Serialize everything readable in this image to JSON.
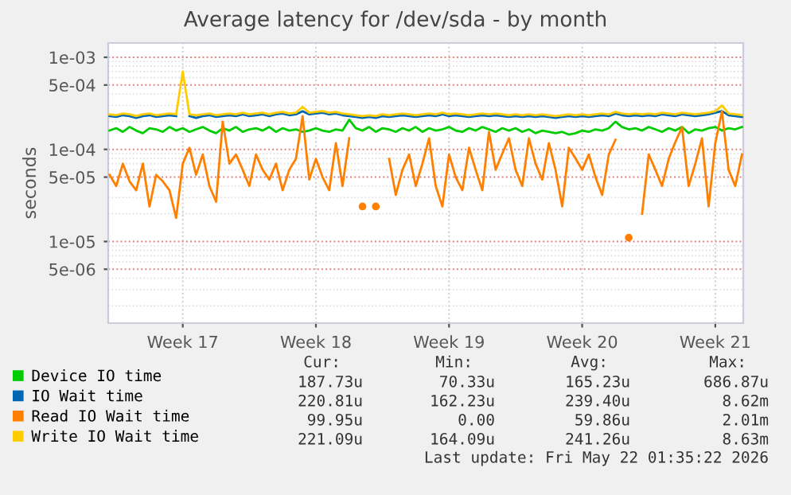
{
  "chart_data": {
    "type": "line",
    "title": "Average latency for /dev/sda - by month",
    "ylabel": "seconds",
    "log": "y",
    "grid": true,
    "legend": "bottom",
    "marker": "none",
    "line_style": "solid",
    "categories": [
      null,
      null,
      null,
      null,
      null,
      null,
      null,
      null,
      null,
      null,
      null,
      "Week 17",
      null,
      null,
      null,
      null,
      null,
      null,
      null,
      null,
      null,
      null,
      null,
      null,
      null,
      null,
      null,
      null,
      null,
      null,
      null,
      "Week 18",
      null,
      null,
      null,
      null,
      null,
      null,
      null,
      null,
      null,
      null,
      null,
      null,
      null,
      null,
      null,
      null,
      null,
      null,
      null,
      "Week 19",
      null,
      null,
      null,
      null,
      null,
      null,
      null,
      null,
      null,
      null,
      null,
      null,
      null,
      null,
      null,
      null,
      null,
      null,
      null,
      "Week 20",
      null,
      null,
      null,
      null,
      null,
      null,
      null,
      null,
      null,
      null,
      null,
      null,
      null,
      null,
      null,
      null,
      null,
      null,
      null,
      "Week 21",
      null,
      null,
      null,
      null
    ],
    "ylim": [
      1.3e-06,
      0.00143
    ],
    "yticks": [
      {
        "value": 0.001,
        "label": "1e-03"
      },
      {
        "value": 0.0005,
        "label": "5e-04"
      },
      {
        "value": 0.0001,
        "label": "1e-04"
      },
      {
        "value": 5e-05,
        "label": "5e-05"
      },
      {
        "value": 1e-05,
        "label": "1e-05"
      },
      {
        "value": 5e-06,
        "label": "5e-06"
      }
    ],
    "series": [
      {
        "name": "Device IO time",
        "color": "#00cc00",
        "values": [
          0.00016,
          0.00017,
          0.000155,
          0.000175,
          0.00016,
          0.00015,
          0.00017,
          0.000165,
          0.000155,
          0.000175,
          0.00016,
          0.00017,
          0.000155,
          0.000165,
          0.000175,
          0.00016,
          0.00015,
          0.00017,
          0.00016,
          0.000175,
          0.000155,
          0.000165,
          0.00017,
          0.00016,
          0.000175,
          0.000155,
          0.00017,
          0.00016,
          0.000165,
          0.000155,
          0.00016,
          0.00017,
          0.00016,
          0.000155,
          0.000165,
          0.00016,
          0.00021,
          0.00017,
          0.00016,
          0.000175,
          0.000155,
          0.00017,
          0.000165,
          0.000155,
          0.00017,
          0.00016,
          0.000175,
          0.000155,
          0.00017,
          0.00016,
          0.000165,
          0.000175,
          0.00016,
          0.000155,
          0.00017,
          0.00016,
          0.000175,
          0.000165,
          0.000155,
          0.00017,
          0.00016,
          0.00017,
          0.000155,
          0.000165,
          0.00015,
          0.00016,
          0.000155,
          0.00015,
          0.000155,
          0.000145,
          0.00015,
          0.00016,
          0.000155,
          0.000165,
          0.00016,
          0.00017,
          0.0002,
          0.000175,
          0.000165,
          0.00017,
          0.00016,
          0.000175,
          0.000165,
          0.000155,
          0.00017,
          0.00016,
          0.000175,
          0.00015,
          0.000165,
          0.00016,
          0.00017,
          0.000175,
          0.00016,
          0.00017,
          0.000165,
          0.000175
        ]
      },
      {
        "name": "IO Wait time",
        "color": "#0066b3",
        "values": [
          0.00023,
          0.000225,
          0.000235,
          0.00023,
          0.00022,
          0.00023,
          0.000235,
          0.000225,
          0.00023,
          0.000235,
          0.00023,
          null,
          0.00023,
          0.00022,
          0.00023,
          0.000235,
          0.000225,
          0.00023,
          0.000235,
          0.00023,
          0.00024,
          0.00023,
          0.000235,
          0.00024,
          0.00023,
          0.00024,
          0.000245,
          0.000235,
          0.00024,
          0.00026,
          0.00024,
          0.000245,
          0.00025,
          0.00024,
          0.000245,
          0.000235,
          0.00023,
          0.000225,
          0.00022,
          0.000225,
          0.00022,
          0.00023,
          0.000225,
          0.00023,
          0.000235,
          0.00023,
          0.000225,
          0.00023,
          0.000235,
          0.00023,
          0.00024,
          0.00023,
          0.000235,
          0.00023,
          0.000225,
          0.00023,
          0.000235,
          0.00023,
          0.000235,
          0.00023,
          0.000225,
          0.00023,
          0.000225,
          0.00023,
          0.000225,
          0.00023,
          0.000225,
          0.00022,
          0.000225,
          0.00023,
          0.000225,
          0.00023,
          0.000225,
          0.00023,
          0.000235,
          0.00023,
          0.000245,
          0.000235,
          0.00023,
          0.000235,
          0.00023,
          0.000235,
          0.00023,
          0.00024,
          0.000235,
          0.00023,
          0.00024,
          0.000235,
          0.00023,
          0.000235,
          0.00024,
          0.00025,
          0.00026,
          0.000235,
          0.00023,
          0.000225
        ]
      },
      {
        "name": "Read IO Wait time",
        "color": "#ff8000",
        "values": [
          5.3e-05,
          4e-05,
          7e-05,
          4.5e-05,
          3.6e-05,
          7e-05,
          2.4e-05,
          5.3e-05,
          4.5e-05,
          3.6e-05,
          1.8e-05,
          7e-05,
          0.000104,
          5.3e-05,
          8.8e-05,
          4e-05,
          2.7e-05,
          0.0002,
          7e-05,
          8.8e-05,
          6e-05,
          4e-05,
          8.8e-05,
          6e-05,
          4.7e-05,
          7e-05,
          3.6e-05,
          6e-05,
          7.9e-05,
          0.00023,
          4.7e-05,
          7.9e-05,
          5e-05,
          3.6e-05,
          0.000117,
          4e-05,
          0.000132,
          null,
          2.4e-05,
          null,
          2.4e-05,
          null,
          7.9e-05,
          3.2e-05,
          6e-05,
          8.8e-05,
          4e-05,
          7e-05,
          0.000132,
          4e-05,
          2.4e-05,
          8.8e-05,
          5e-05,
          3.6e-05,
          0.000104,
          6e-05,
          3.6e-05,
          0.000155,
          6e-05,
          9e-05,
          0.000132,
          6e-05,
          4e-05,
          0.000132,
          7e-05,
          4.7e-05,
          0.000117,
          6e-05,
          2.4e-05,
          0.000104,
          8e-05,
          6e-05,
          8.8e-05,
          5e-05,
          3.2e-05,
          8.8e-05,
          0.000127,
          null,
          1.1e-05,
          null,
          2e-05,
          8.8e-05,
          6e-05,
          4e-05,
          7.9e-05,
          0.00012,
          0.000174,
          4e-05,
          7e-05,
          0.000132,
          2.4e-05,
          0.000117,
          0.000259,
          6e-05,
          4e-05,
          8.8e-05
        ]
      },
      {
        "name": "Write IO Wait time",
        "color": "#ffcc00",
        "values": [
          0.00024,
          0.000235,
          0.000245,
          0.00024,
          0.00023,
          0.00024,
          0.000245,
          0.000235,
          0.00024,
          0.000245,
          0.00024,
          0.0007,
          0.00024,
          0.000235,
          0.00024,
          0.000245,
          0.000235,
          0.00024,
          0.000245,
          0.00024,
          0.00025,
          0.00024,
          0.000245,
          0.00025,
          0.00024,
          0.00025,
          0.000255,
          0.000245,
          0.00025,
          0.00029,
          0.00025,
          0.000255,
          0.00026,
          0.00025,
          0.000255,
          0.000245,
          0.00024,
          0.000235,
          0.00023,
          0.000235,
          0.00023,
          0.00024,
          0.000235,
          0.00024,
          0.000245,
          0.00024,
          0.000235,
          0.00024,
          0.000245,
          0.00024,
          0.00025,
          0.00024,
          0.000245,
          0.00024,
          0.000235,
          0.00024,
          0.000245,
          0.00024,
          0.000245,
          0.00024,
          0.000235,
          0.00024,
          0.000235,
          0.00024,
          0.000235,
          0.00024,
          0.000235,
          0.00023,
          0.000235,
          0.00024,
          0.000235,
          0.00024,
          0.000235,
          0.00024,
          0.000245,
          0.00024,
          0.000255,
          0.000245,
          0.00024,
          0.000245,
          0.00024,
          0.000245,
          0.00024,
          0.00025,
          0.000245,
          0.00024,
          0.00025,
          0.000245,
          0.00024,
          0.000245,
          0.00025,
          0.00026,
          0.0003,
          0.000245,
          0.00024,
          0.000235
        ]
      }
    ],
    "annotations": [
      "Cur:",
      "Min:",
      "Avg:",
      "Max:",
      "187.73u",
      "70.33u",
      "165.23u",
      "686.87u",
      "220.81u",
      "162.23u",
      "239.40u",
      "8.62m",
      "99.95u",
      "0.00",
      "59.86u",
      "2.01m",
      "221.09u",
      "164.09u",
      "241.26u",
      "8.63m",
      "Last update: Fri May 22 01:35:22 2026"
    ]
  }
}
